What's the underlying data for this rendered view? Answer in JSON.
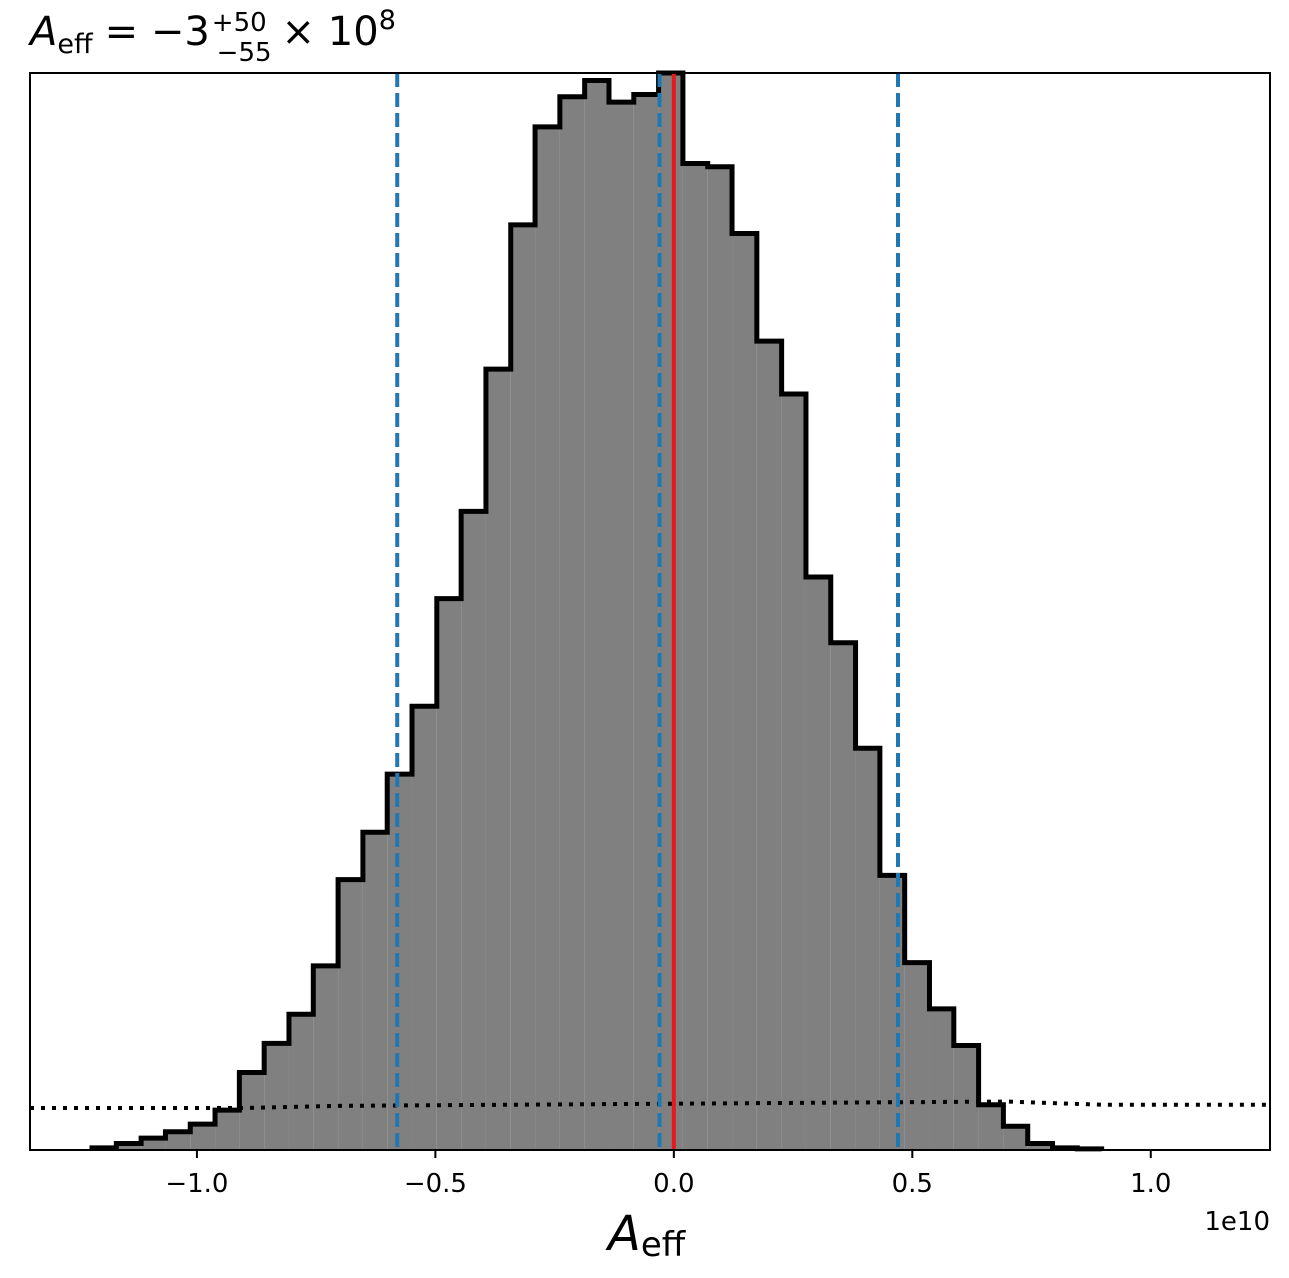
{
  "chart_data": {
    "type": "histogram",
    "title": {
      "symbol": "A",
      "subscript": "eff",
      "relation": "= −3",
      "upper_error": "+50",
      "lower_error": "−55",
      "multiplier": "× 10",
      "exponent": "8"
    },
    "xlabel": {
      "symbol": "A",
      "subscript": "eff"
    },
    "x_offset_label": "1e10",
    "xlim": [
      -1.35,
      1.25
    ],
    "ylim": [
      0,
      1.0
    ],
    "xticks": [
      -1.0,
      -0.5,
      0.0,
      0.5,
      1.0
    ],
    "xtick_labels": [
      "−1.0",
      "−0.5",
      "0.0",
      "0.5",
      "1.0"
    ],
    "bin_edges": [
      -1.22,
      -1.169,
      -1.117,
      -1.066,
      -1.014,
      -0.962,
      -0.911,
      -0.859,
      -0.807,
      -0.756,
      -0.704,
      -0.652,
      -0.601,
      -0.549,
      -0.497,
      -0.446,
      -0.394,
      -0.342,
      -0.291,
      -0.239,
      -0.187,
      -0.136,
      -0.084,
      -0.032,
      0.019,
      0.071,
      0.122,
      0.174,
      0.226,
      0.277,
      0.329,
      0.381,
      0.432,
      0.484,
      0.536,
      0.587,
      0.639,
      0.691,
      0.742,
      0.794,
      0.846,
      0.897
    ],
    "counts": [
      0.002,
      0.006,
      0.011,
      0.017,
      0.024,
      0.037,
      0.072,
      0.099,
      0.126,
      0.171,
      0.251,
      0.295,
      0.349,
      0.412,
      0.512,
      0.593,
      0.725,
      0.859,
      0.95,
      0.978,
      0.993,
      0.973,
      0.98,
      1.0,
      0.916,
      0.913,
      0.851,
      0.751,
      0.702,
      0.532,
      0.471,
      0.373,
      0.255,
      0.174,
      0.131,
      0.097,
      0.042,
      0.022,
      0.006,
      0.002,
      0.001
    ],
    "fill_color": "#808080",
    "edge_color": "#000000",
    "vertical_lines": [
      {
        "x": -0.58,
        "color": "#1f77b4",
        "style": "dashed"
      },
      {
        "x": -0.03,
        "color": "#1f77b4",
        "style": "dashed"
      },
      {
        "x": 0.47,
        "color": "#1f77b4",
        "style": "dashed"
      },
      {
        "x": 0.0,
        "color": "#e41a1c",
        "style": "solid"
      }
    ],
    "prior_line": {
      "style": "dotted",
      "color": "#000000",
      "x": [
        -1.35,
        -0.9,
        -0.7,
        0.0,
        0.7,
        0.9,
        1.25
      ],
      "y": [
        0.039,
        0.039,
        0.041,
        0.043,
        0.045,
        0.042,
        0.042
      ]
    },
    "grid": false
  }
}
